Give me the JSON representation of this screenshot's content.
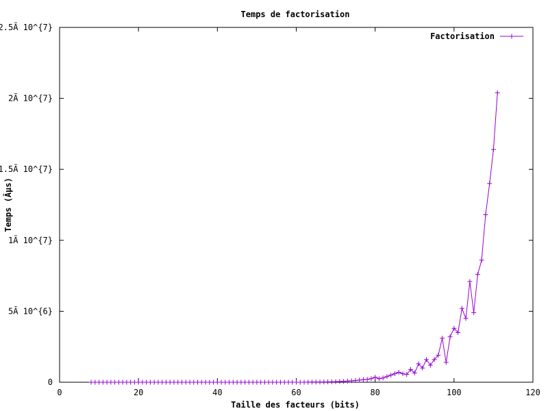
{
  "chart_data": {
    "type": "line",
    "title": "Temps de factorisation",
    "xlabel": "Taille des facteurs (bits)",
    "ylabel": "Temps (Âµs)",
    "xlim": [
      0,
      120
    ],
    "ylim": [
      0,
      25000000
    ],
    "x_ticks": [
      {
        "value": 0,
        "label": "0"
      },
      {
        "value": 20,
        "label": "20"
      },
      {
        "value": 40,
        "label": "40"
      },
      {
        "value": 60,
        "label": "60"
      },
      {
        "value": 80,
        "label": "80"
      },
      {
        "value": 100,
        "label": "100"
      },
      {
        "value": 120,
        "label": "120"
      }
    ],
    "y_ticks": [
      {
        "value": 0,
        "label": "0"
      },
      {
        "value": 5000000,
        "label": "5Ã 10^{6}"
      },
      {
        "value": 10000000,
        "label": "1Ã 10^{7}"
      },
      {
        "value": 15000000,
        "label": "1.5Ã 10^{7}"
      },
      {
        "value": 20000000,
        "label": "2Ã 10^{7}"
      },
      {
        "value": 25000000,
        "label": "2.5Ã 10^{7}"
      }
    ],
    "grid": false,
    "legend_position": "top-right",
    "series": [
      {
        "name": "Factorisation",
        "color": "#9400d3",
        "marker": "plus",
        "x": [
          8,
          9,
          10,
          11,
          12,
          13,
          14,
          15,
          16,
          17,
          18,
          19,
          20,
          21,
          22,
          23,
          24,
          25,
          26,
          27,
          28,
          29,
          30,
          31,
          32,
          33,
          34,
          35,
          36,
          37,
          38,
          39,
          40,
          41,
          42,
          43,
          44,
          45,
          46,
          47,
          48,
          49,
          50,
          51,
          52,
          53,
          54,
          55,
          56,
          57,
          58,
          59,
          60,
          61,
          62,
          63,
          64,
          65,
          66,
          67,
          68,
          69,
          70,
          71,
          72,
          73,
          74,
          75,
          76,
          77,
          78,
          79,
          80,
          81,
          82,
          83,
          84,
          85,
          86,
          87,
          88,
          89,
          90,
          91,
          92,
          93,
          94,
          95,
          96,
          97,
          98,
          99,
          100,
          101,
          102,
          103,
          104,
          105,
          106,
          107,
          108,
          109,
          110,
          111
        ],
        "y": [
          0,
          0,
          0,
          0,
          0,
          0,
          0,
          0,
          0,
          0,
          0,
          0,
          0,
          0,
          0,
          0,
          0,
          0,
          0,
          0,
          0,
          0,
          0,
          0,
          0,
          0,
          0,
          0,
          0,
          0,
          0,
          0,
          0,
          0,
          0,
          0,
          0,
          0,
          0,
          0,
          0,
          0,
          0,
          0,
          0,
          0,
          0,
          0,
          0,
          0,
          0,
          0,
          0,
          0,
          0,
          5000,
          8000,
          12000,
          15000,
          20000,
          25000,
          30000,
          40000,
          50000,
          60000,
          80000,
          100000,
          120000,
          150000,
          180000,
          200000,
          250000,
          350000,
          250000,
          300000,
          400000,
          500000,
          600000,
          700000,
          600000,
          550000,
          900000,
          650000,
          1300000,
          1000000,
          1600000,
          1200000,
          1600000,
          1900000,
          3100000,
          1400000,
          3200000,
          3800000,
          3500000,
          5200000,
          4500000,
          7100000,
          4900000,
          7600000,
          8600000,
          11800000,
          14000000,
          16400000,
          20400000
        ]
      }
    ]
  }
}
